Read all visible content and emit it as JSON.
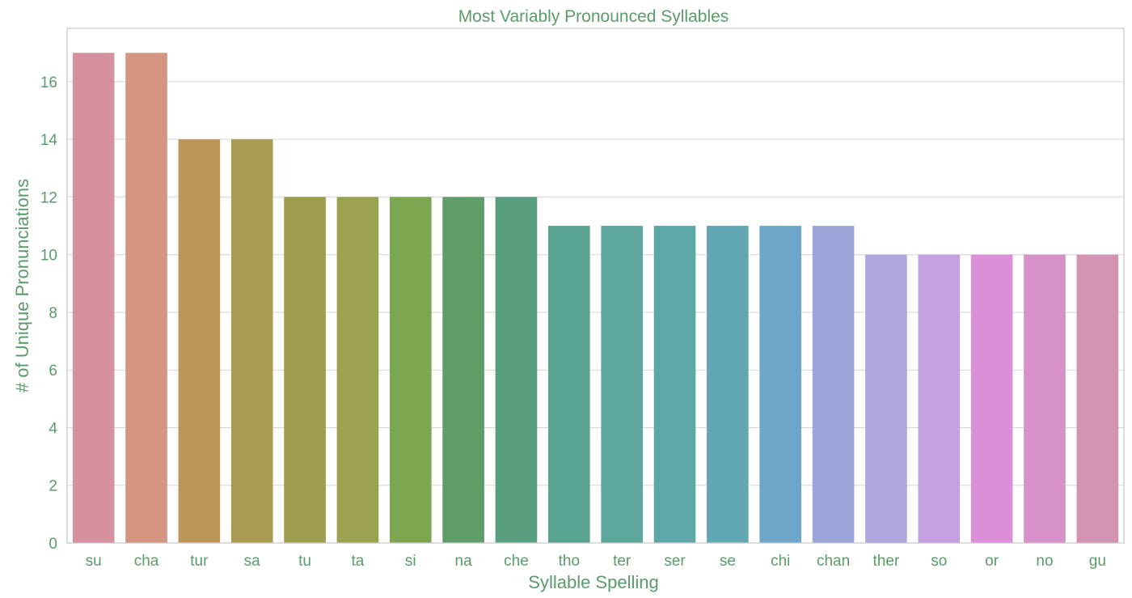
{
  "colors": {
    "text": "#5b9a6b",
    "grid": "#d4d4d4",
    "axis_box": "#c8c8c8",
    "bars": [
      "#d6919e",
      "#d59580",
      "#bc9659",
      "#a89b51",
      "#a09d4e",
      "#9aa24f",
      "#7da653",
      "#5e9d68",
      "#5a9e80",
      "#5aa391",
      "#5ea69b",
      "#5ea7a8",
      "#62a8b4",
      "#6da6c8",
      "#9aa5dc",
      "#b0a6de",
      "#c69fe0",
      "#da8fd8",
      "#d690ca",
      "#d393b2"
    ]
  },
  "chart_data": {
    "type": "bar",
    "title": "Most Variably Pronounced Syllables",
    "xlabel": "Syllable Spelling",
    "ylabel": "# of Unique Pronunciations",
    "categories": [
      "su",
      "cha",
      "tur",
      "sa",
      "tu",
      "ta",
      "si",
      "na",
      "che",
      "tho",
      "ter",
      "ser",
      "se",
      "chi",
      "chan",
      "ther",
      "so",
      "or",
      "no",
      "gu"
    ],
    "values": [
      17,
      17,
      14,
      14,
      12,
      12,
      12,
      12,
      12,
      11,
      11,
      11,
      11,
      11,
      11,
      10,
      10,
      10,
      10,
      10
    ],
    "ylim": [
      0,
      17.85
    ],
    "yticks": [
      0,
      2,
      4,
      6,
      8,
      10,
      12,
      14,
      16
    ],
    "grid": true,
    "legend": "none"
  }
}
